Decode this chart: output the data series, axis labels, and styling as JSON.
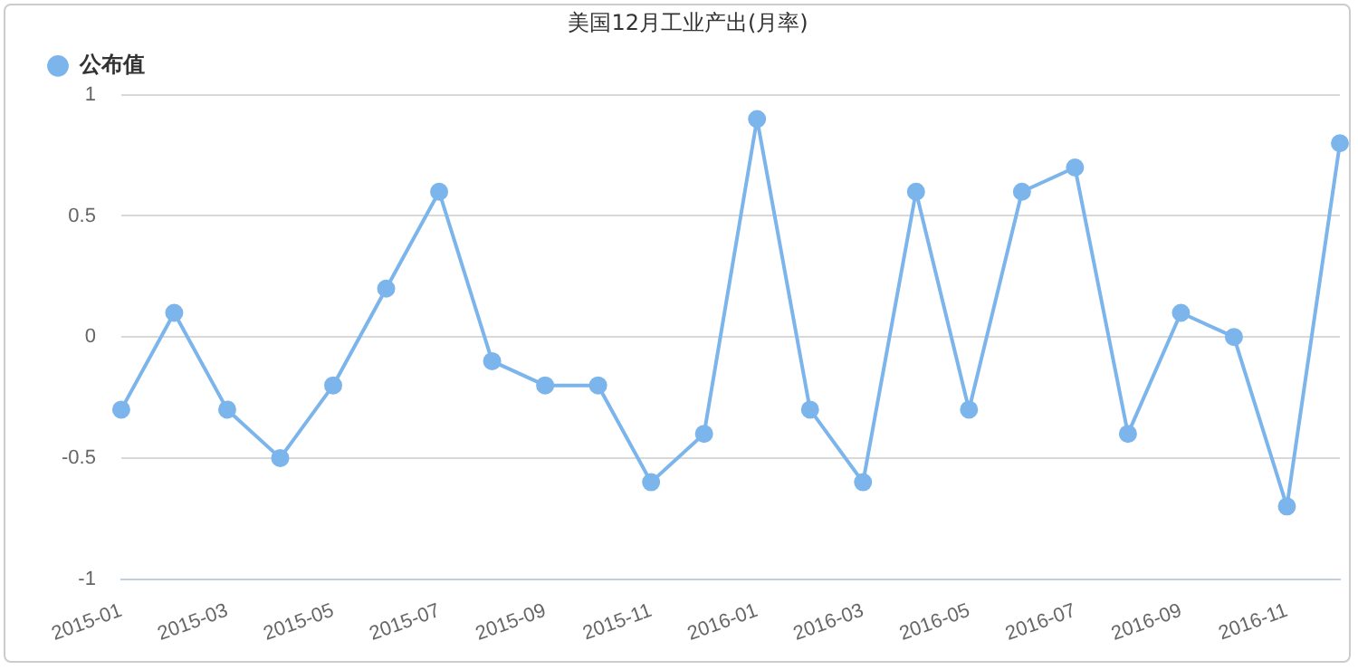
{
  "chart_data": {
    "type": "line",
    "title": "美国12月工业产出(月率)",
    "categories": [
      "2015-01",
      null,
      "2015-03",
      null,
      "2015-05",
      null,
      "2015-07",
      null,
      "2015-09",
      null,
      "2015-11",
      null,
      "2016-01",
      null,
      "2016-03",
      null,
      "2016-05",
      null,
      "2016-07",
      null,
      "2016-09",
      null,
      "2016-11",
      null
    ],
    "series": [
      {
        "name": "公布值",
        "color": "#7cb5ec",
        "values": [
          -0.3,
          0.1,
          -0.3,
          -0.5,
          -0.2,
          0.2,
          0.6,
          -0.1,
          -0.2,
          -0.2,
          -0.6,
          -0.4,
          0.9,
          -0.3,
          -0.6,
          0.6,
          -0.3,
          0.6,
          0.7,
          -0.4,
          0.1,
          0,
          -0.7,
          0.8
        ]
      }
    ],
    "ylim": [
      -1,
      1
    ],
    "yticks": [
      -1,
      -0.5,
      0,
      0.5,
      1
    ],
    "grid": "y",
    "legend": "top left",
    "marker": "circle"
  }
}
